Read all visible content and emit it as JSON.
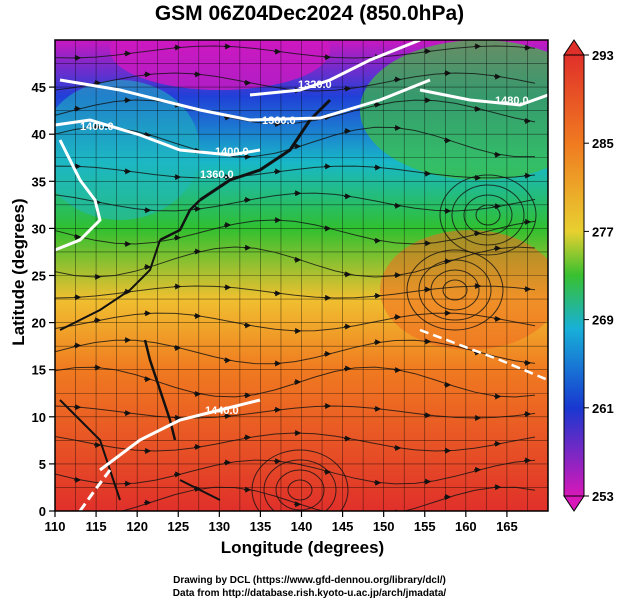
{
  "title": "GSM 06Z04Dec2024 (850.0hPa)",
  "x_axis": {
    "label": "Longitude (degrees)",
    "ticks": [
      110,
      115,
      120,
      125,
      130,
      135,
      140,
      145,
      150,
      155,
      160,
      165
    ],
    "range": [
      110,
      170
    ]
  },
  "y_axis": {
    "label": "Latitude  (degrees)",
    "ticks": [
      0,
      5,
      10,
      15,
      20,
      25,
      30,
      35,
      40,
      45
    ],
    "range": [
      0,
      50
    ]
  },
  "colorbar": {
    "ticks": [
      293,
      285,
      277,
      269,
      261,
      253
    ],
    "colors": [
      "#e0302a",
      "#f07a20",
      "#f4c030",
      "#38c030",
      "#18b0d8",
      "#1838d0",
      "#d818b8"
    ]
  },
  "contours": {
    "labels": [
      "1320.0",
      "1360.0",
      "1400.0",
      "1440.0",
      "1480.0",
      "1400.0",
      "1360.0"
    ]
  },
  "credits": {
    "drawing": "Drawing by DCL (https://www.gfd-dennou.org/library/dcl/)",
    "data": "Data from http://database.rish.kyoto-u.ac.jp/arch/jmadata/"
  }
}
